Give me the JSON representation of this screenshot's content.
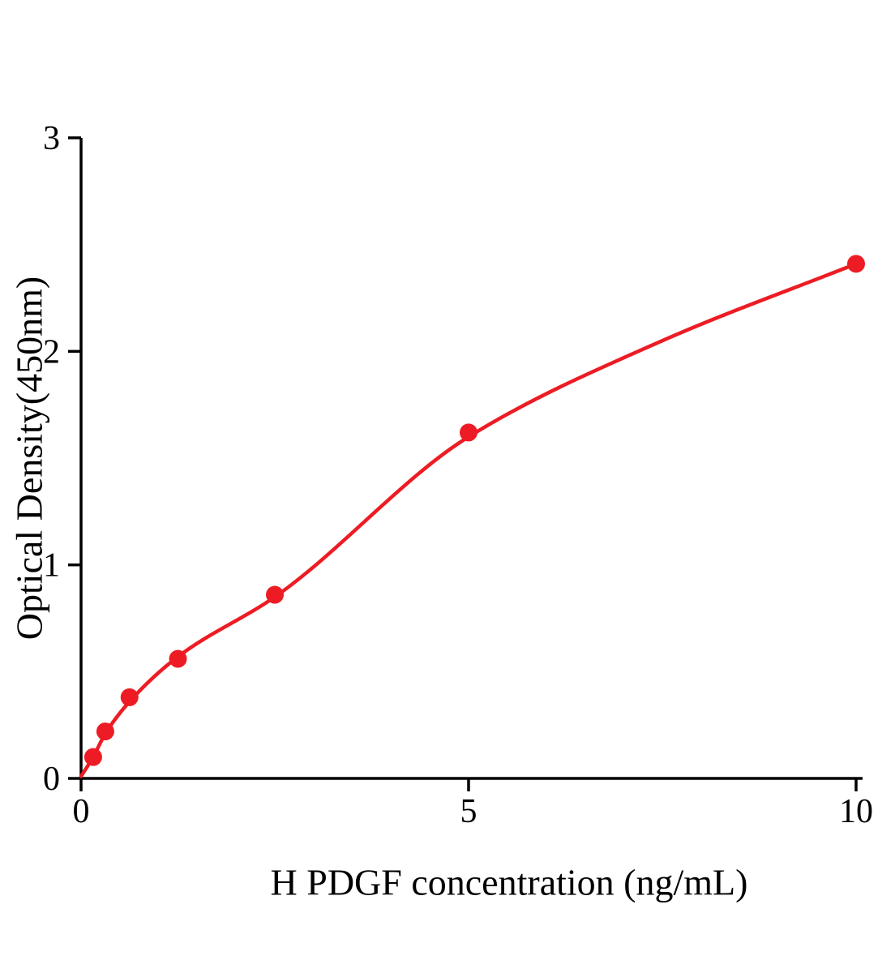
{
  "chart_data": {
    "type": "scatter",
    "title": "",
    "xlabel": "H PDGF concentration (ng/mL)",
    "ylabel": "Optical Density(450nm)",
    "xlim": [
      0,
      10
    ],
    "ylim": [
      0,
      3
    ],
    "x_ticks": [
      0,
      5,
      10
    ],
    "y_ticks": [
      0,
      1,
      2,
      3
    ],
    "grid": false,
    "legend": "none",
    "accent_color": "#ed1c24",
    "axis_color": "#000000",
    "series": [
      {
        "name": "standard-curve-points",
        "type": "scatter",
        "color": "#ed1c24",
        "points": [
          {
            "x": 0.156,
            "y": 0.1
          },
          {
            "x": 0.313,
            "y": 0.22
          },
          {
            "x": 0.625,
            "y": 0.38
          },
          {
            "x": 1.25,
            "y": 0.56
          },
          {
            "x": 2.5,
            "y": 0.86
          },
          {
            "x": 5,
            "y": 1.62
          },
          {
            "x": 10,
            "y": 2.41
          }
        ]
      },
      {
        "name": "fitted-curve",
        "type": "line",
        "color": "#ed1c24",
        "points": [
          {
            "x": 0,
            "y": 0.01
          },
          {
            "x": 0.156,
            "y": 0.1
          },
          {
            "x": 0.313,
            "y": 0.21
          },
          {
            "x": 0.625,
            "y": 0.36
          },
          {
            "x": 1.25,
            "y": 0.57
          },
          {
            "x": 2.5,
            "y": 0.85
          },
          {
            "x": 5,
            "y": 1.6
          },
          {
            "x": 7.5,
            "y": 2.05
          },
          {
            "x": 10,
            "y": 2.41
          }
        ]
      }
    ]
  }
}
